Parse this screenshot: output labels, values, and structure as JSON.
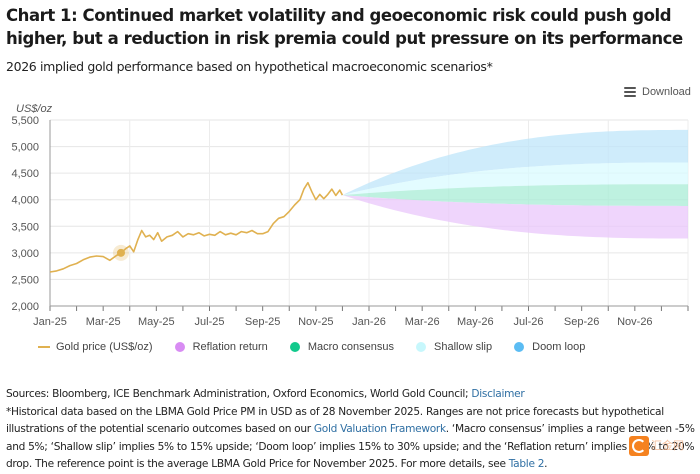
{
  "header": {
    "title": "Chart 1: Continued market volatility and geoeconomic risk could push gold higher, but a reduction in risk premia could put pressure on its performance",
    "subtitle": "2026 implied gold performance based on hypothetical macroeconomic scenarios*"
  },
  "toolbar": {
    "download_label": "Download",
    "download_icon": "menu-icon"
  },
  "colors": {
    "gold": "#e0b150",
    "reflation": "#e9c7fb",
    "macro": "#a8ecd6",
    "shallow": "#d9fbff",
    "doom": "#bfe6fa",
    "legend_reflation": "#d88cf3",
    "legend_macro": "#11c98c",
    "legend_shallow": "#c7f7fc",
    "legend_doom": "#5bbcf3",
    "link": "#2f6fa3"
  },
  "chart_data": {
    "type": "area",
    "title": "2026 implied gold performance based on hypothetical macroeconomic scenarios*",
    "ylabel": "US$/oz",
    "xlabel": "",
    "ylim": [
      2000,
      5500
    ],
    "yticks": [
      2000,
      2500,
      3000,
      3500,
      4000,
      4500,
      5000,
      5500
    ],
    "ytick_labels": [
      "2,000",
      "2,500",
      "3,000",
      "3,500",
      "4,000",
      "4,500",
      "5,000",
      "5,500"
    ],
    "xlim": [
      "Jan-25",
      "Jan-27"
    ],
    "xtick_labels": [
      "Jan-25",
      "Mar-25",
      "May-25",
      "Jul-25",
      "Sep-25",
      "Nov-25",
      "Jan-26",
      "Mar-26",
      "May-26",
      "Jul-26",
      "Sep-26",
      "Nov-26"
    ],
    "grid": true,
    "legend_position": "bottom",
    "reference_price": 4087,
    "reference_month": 11,
    "gold_series": {
      "name": "Gold price (US$/oz)",
      "months": [
        0,
        0.25,
        0.5,
        0.75,
        1.0,
        1.25,
        1.5,
        1.75,
        2.0,
        2.25,
        2.5,
        2.67,
        2.85,
        3.0,
        3.15,
        3.3,
        3.45,
        3.6,
        3.75,
        3.9,
        4.05,
        4.2,
        4.4,
        4.6,
        4.8,
        5.0,
        5.2,
        5.4,
        5.6,
        5.8,
        6.0,
        6.2,
        6.4,
        6.6,
        6.8,
        7.0,
        7.2,
        7.4,
        7.6,
        7.8,
        8.0,
        8.2,
        8.4,
        8.6,
        8.8,
        9.0,
        9.2,
        9.4,
        9.55,
        9.7,
        9.85,
        10.0,
        10.15,
        10.3,
        10.45,
        10.6,
        10.75,
        10.9,
        11.0
      ],
      "values": [
        2640,
        2660,
        2700,
        2760,
        2800,
        2870,
        2920,
        2940,
        2930,
        2860,
        2950,
        3000,
        3080,
        3130,
        3020,
        3240,
        3420,
        3300,
        3330,
        3250,
        3380,
        3220,
        3300,
        3330,
        3400,
        3300,
        3360,
        3340,
        3380,
        3320,
        3350,
        3330,
        3400,
        3340,
        3370,
        3340,
        3400,
        3380,
        3420,
        3360,
        3360,
        3400,
        3550,
        3650,
        3680,
        3780,
        3900,
        4000,
        4200,
        4320,
        4150,
        4000,
        4100,
        4020,
        4100,
        4200,
        4080,
        4180,
        4087
      ],
      "highlight_point": {
        "month": 2.67,
        "value": 3000
      }
    },
    "scenarios": [
      {
        "name": "Doom loop",
        "low_pct": 15,
        "high_pct": 30,
        "low_end": 4700,
        "high_end": 5313
      },
      {
        "name": "Shallow slip",
        "low_pct": 5,
        "high_pct": 15,
        "low_end": 4291,
        "high_end": 4700
      },
      {
        "name": "Macro consensus",
        "low_pct": -5,
        "high_pct": 5,
        "low_end": 3883,
        "high_end": 4291
      },
      {
        "name": "Reflation return",
        "low_pct": -20,
        "high_pct": -5,
        "low_end": 3270,
        "high_end": 3883
      }
    ],
    "fan_start_month": 11,
    "fan_end_month": 24
  },
  "legend": [
    {
      "label": "Gold price (US$/oz)",
      "kind": "line"
    },
    {
      "label": "Reflation return",
      "kind": "dot"
    },
    {
      "label": "Macro consensus",
      "kind": "dot"
    },
    {
      "label": "Shallow slip",
      "kind": "dot"
    },
    {
      "label": "Doom loop",
      "kind": "dot"
    }
  ],
  "footnotes": {
    "sources_prefix": "Sources: Bloomberg, ICE Benchmark Administration, Oxford Economics, World Gold Council; ",
    "disclaimer_link": "Disclaimer",
    "note_part1": "*Historical data based on the LBMA Gold Price PM in USD as of 28 November 2025. Ranges are not price forecasts but hypothetical illustrations of the potential scenario outcomes based on our ",
    "framework_link": "Gold Valuation Framework",
    "note_part2": ". ‘Macro consensus’ implies a range between -5% and 5%; ‘Shallow slip’ implies 5% to 15% upside; ‘Doom loop’ implies 15% to 30% upside; and the ‘Reflation return’ implies a 5% to 20% drop. The reference point is the average LBMA Gold Price for November 2025. For more details, see ",
    "table_link": "Table 2",
    "note_end": "."
  },
  "watermark": {
    "text": "汇金网"
  }
}
